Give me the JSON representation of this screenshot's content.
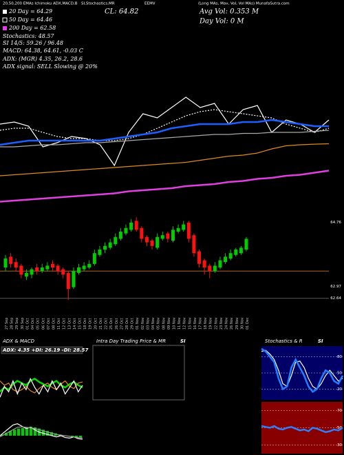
{
  "header": {
    "top": [
      "20,50,200 EMAs Ichimoku ADX,MACD,B",
      "SI,Stochastics,MR",
      "EEMV",
      "(Long MAs, Mav, Vol, Vol MAs) MunafaSutra.com"
    ],
    "lines": [
      "20 Day = 64.29",
      "50 Day = 64.46",
      "200 Day = 62.58",
      "Stochastics: 48.57",
      "SI 14/5: 59.26 / 96.48",
      "MACD: 64.38, 64.61, -0.03 C",
      "ADX: (MGR) 4.35, 26.2, 28.6",
      "ADX signal: SELL Slowing @ 20%"
    ],
    "cl": "CL: 64.82",
    "avg_vol": "Avg Vol: 0.353 M",
    "day_vol": "Day Vol: 0 M"
  },
  "chart_data": [
    {
      "type": "line",
      "ylim": [
        60,
        66
      ],
      "series": [
        {
          "color": "#ffffff",
          "values": [
            64.0,
            64.1,
            63.9,
            62.9,
            63.1,
            63.4,
            63.3,
            63.0,
            62.0,
            63.6,
            64.5,
            64.3,
            64.8,
            65.3,
            64.8,
            65.0,
            64.0,
            64.7,
            64.9,
            63.6,
            64.2,
            64.0,
            63.6,
            64.2
          ]
        },
        {
          "color": "#ffffff",
          "style": "dotted",
          "values": [
            63.7,
            63.8,
            63.8,
            63.6,
            63.4,
            63.3,
            63.3,
            63.2,
            63.2,
            63.3,
            63.5,
            63.8,
            64.1,
            64.4,
            64.6,
            64.7,
            64.6,
            64.5,
            64.4,
            64.3,
            64.0,
            63.8,
            63.6,
            63.8
          ]
        },
        {
          "color": "#aaaaaa",
          "values": [
            62.9,
            62.9,
            62.95,
            63.0,
            63.0,
            63.05,
            63.1,
            63.1,
            63.15,
            63.2,
            63.25,
            63.3,
            63.35,
            63.4,
            63.45,
            63.5,
            63.5,
            63.55,
            63.55,
            63.6,
            63.6,
            63.6,
            63.65,
            63.7
          ]
        },
        {
          "color": "#1f5fff",
          "style": "thick",
          "values": [
            63.0,
            63.1,
            63.2,
            63.2,
            63.2,
            63.2,
            63.2,
            63.2,
            63.3,
            63.4,
            63.5,
            63.6,
            63.8,
            63.9,
            64.0,
            64.0,
            64.0,
            64.1,
            64.1,
            64.2,
            64.1,
            64.0,
            63.9,
            63.9
          ]
        },
        {
          "color": "#e08a1e",
          "values": [
            61.5,
            61.55,
            61.6,
            61.65,
            61.7,
            61.75,
            61.8,
            61.85,
            61.9,
            61.95,
            62.0,
            62.05,
            62.1,
            62.15,
            62.25,
            62.35,
            62.45,
            62.5,
            62.6,
            62.8,
            62.95,
            63.0,
            63.03,
            63.05
          ]
        },
        {
          "color": "#e040e0",
          "style": "thick",
          "values": [
            60.25,
            60.3,
            60.35,
            60.4,
            60.45,
            60.5,
            60.55,
            60.6,
            60.65,
            60.75,
            60.8,
            60.85,
            60.9,
            61.0,
            61.05,
            61.1,
            61.2,
            61.25,
            61.35,
            61.4,
            61.5,
            61.55,
            61.65,
            61.75
          ]
        }
      ]
    },
    {
      "type": "candlestick",
      "ylim": [
        62.5,
        65.0
      ],
      "yticks": [
        64.76,
        62.97,
        62.64
      ],
      "hlines": [
        {
          "value": 63.4,
          "color": "#c87533"
        },
        {
          "value": 62.64,
          "color": "#777777"
        }
      ],
      "categories": [
        "27 Sep",
        "28 Sep",
        "29 Sep",
        "30 Sep",
        "01 Oct",
        "04 Oct",
        "05 Oct",
        "06 Oct",
        "07 Oct",
        "08 Oct",
        "11 Oct",
        "12 Oct",
        "13 Oct",
        "14 Oct",
        "15 Oct",
        "18 Oct",
        "19 Oct",
        "20 Oct",
        "21 Oct",
        "22 Oct",
        "25 Oct",
        "26 Oct",
        "27 Oct",
        "28 Oct",
        "29 Oct",
        "01 Nov",
        "02 Nov",
        "03 Nov",
        "04 Nov",
        "05 Nov",
        "08 Nov",
        "09 Nov",
        "10 Nov",
        "11 Nov",
        "12 Nov",
        "15 Nov",
        "16 Nov",
        "17 Nov",
        "18 Nov",
        "19 Nov",
        "22 Nov",
        "23 Nov",
        "24 Nov",
        "26 Nov",
        "29 Nov",
        "30 Nov",
        "01 Dec"
      ],
      "open": [
        63.5,
        63.8,
        63.65,
        63.55,
        63.25,
        63.3,
        63.5,
        63.4,
        63.45,
        63.6,
        63.55,
        63.45,
        63.35,
        62.95,
        63.35,
        63.45,
        63.5,
        63.6,
        63.85,
        64.0,
        64.05,
        64.15,
        64.3,
        64.45,
        64.55,
        64.8,
        64.6,
        64.35,
        64.25,
        64.05,
        64.3,
        64.45,
        64.25,
        64.5,
        64.55,
        64.75,
        64.4,
        63.95,
        63.7,
        63.55,
        63.4,
        63.5,
        63.65,
        63.75,
        63.85,
        63.9,
        64.0
      ],
      "high": [
        63.85,
        63.9,
        63.75,
        63.6,
        63.45,
        63.5,
        63.6,
        63.6,
        63.65,
        63.7,
        63.6,
        63.5,
        63.4,
        63.5,
        63.6,
        63.65,
        63.7,
        64.0,
        64.1,
        64.2,
        64.3,
        64.45,
        64.6,
        64.7,
        64.85,
        64.9,
        64.65,
        64.4,
        64.3,
        64.45,
        64.5,
        64.5,
        64.65,
        64.7,
        64.8,
        64.8,
        64.45,
        64.0,
        63.75,
        63.6,
        63.65,
        63.8,
        63.9,
        64.0,
        64.05,
        64.1,
        64.35
      ],
      "low": [
        63.4,
        63.5,
        63.4,
        63.2,
        63.15,
        63.2,
        63.3,
        63.35,
        63.4,
        63.4,
        63.3,
        63.2,
        62.6,
        62.9,
        63.3,
        63.4,
        63.45,
        63.55,
        63.8,
        63.9,
        64.0,
        64.1,
        64.25,
        64.4,
        64.5,
        64.5,
        64.2,
        64.1,
        64.0,
        64.0,
        64.25,
        64.2,
        64.2,
        64.45,
        64.5,
        64.2,
        63.8,
        63.5,
        63.3,
        63.2,
        63.35,
        63.45,
        63.6,
        63.7,
        63.8,
        63.85,
        63.95
      ],
      "close": [
        63.75,
        63.6,
        63.5,
        63.3,
        63.35,
        63.45,
        63.4,
        63.5,
        63.55,
        63.5,
        63.4,
        63.3,
        62.9,
        63.4,
        63.5,
        63.55,
        63.6,
        63.9,
        64.0,
        64.1,
        64.2,
        64.35,
        64.5,
        64.6,
        64.75,
        64.55,
        64.3,
        64.2,
        64.1,
        64.35,
        64.4,
        64.3,
        64.55,
        64.6,
        64.7,
        64.3,
        63.9,
        63.6,
        63.5,
        63.4,
        63.55,
        63.7,
        63.8,
        63.9,
        64.0,
        64.05,
        64.3
      ]
    },
    {
      "type": "line",
      "title": "ADX & MACD",
      "subtitle": "ADX: 4.35 +DI: 26.19 -DI: 28.57",
      "ylim": [
        0,
        60
      ],
      "series": [
        {
          "color": "#00dd00",
          "style": "thick",
          "values": [
            20,
            24,
            22,
            27,
            30,
            28,
            26,
            30,
            32,
            29,
            27,
            25,
            28,
            30,
            26,
            24,
            27,
            29,
            26,
            24
          ]
        },
        {
          "color": "#e08a1e",
          "values": [
            30,
            26,
            28,
            22,
            20,
            22,
            25,
            21,
            19,
            23,
            26,
            28,
            24,
            22,
            27,
            30,
            25,
            23,
            28,
            29
          ]
        },
        {
          "color": "#ffffff",
          "values": [
            15,
            25,
            20,
            30,
            18,
            28,
            22,
            32,
            24,
            18,
            26,
            20,
            30,
            22,
            28,
            18,
            24,
            30,
            20,
            26
          ]
        }
      ]
    },
    {
      "type": "macd",
      "ylim": [
        -0.3,
        0.3
      ],
      "color": "#00cc00",
      "values": [
        0.02,
        0.05,
        0.08,
        0.1,
        0.12,
        0.13,
        0.14,
        0.15,
        0.14,
        0.12,
        0.1,
        0.08,
        0.06,
        0.04,
        0.02,
        0.0,
        -0.01,
        -0.02,
        -0.02,
        -0.03
      ],
      "series": [
        {
          "color": "#ffffff",
          "values": [
            0.0,
            0.06,
            0.12,
            0.18,
            0.2,
            0.16,
            0.12,
            0.14,
            0.1,
            0.06,
            0.04,
            0.02,
            0.0,
            -0.02,
            0.0,
            -0.03,
            -0.04,
            -0.02,
            -0.05,
            -0.06
          ]
        },
        {
          "color": "#999999",
          "values": [
            -0.02,
            0.02,
            0.06,
            0.1,
            0.14,
            0.15,
            0.14,
            0.13,
            0.12,
            0.1,
            0.08,
            0.06,
            0.04,
            0.02,
            0.01,
            0.0,
            -0.01,
            -0.02,
            -0.03,
            -0.04
          ]
        }
      ]
    },
    {
      "type": "line",
      "title": "Intra Day Trading Price & MR",
      "subtitle": "SI",
      "frame": true
    },
    {
      "type": "line",
      "title": "Stochastics & R",
      "ylim": [
        0,
        100
      ],
      "yticks": [
        20,
        50,
        80
      ],
      "grid": true,
      "background": "#000066",
      "series": [
        {
          "color": "#ffffff",
          "values": [
            90,
            92,
            85,
            75,
            55,
            30,
            25,
            45,
            70,
            72,
            60,
            40,
            25,
            20,
            30,
            45,
            55,
            45,
            35,
            40
          ]
        },
        {
          "color": "#1f7fff",
          "style": "thick",
          "values": [
            95,
            90,
            80,
            70,
            40,
            20,
            25,
            60,
            75,
            60,
            45,
            25,
            15,
            20,
            40,
            55,
            50,
            35,
            30,
            45
          ]
        }
      ]
    },
    {
      "type": "line",
      "subtitle": "SI",
      "ylim": [
        20,
        80
      ],
      "yticks": [
        30,
        50,
        70
      ],
      "grid": true,
      "background": "#880000",
      "series": [
        {
          "color": "#2f7fff",
          "style": "thick",
          "values": [
            52,
            51,
            50,
            52,
            49,
            48,
            50,
            51,
            49,
            47,
            48,
            46,
            50,
            49,
            47,
            45,
            46,
            48,
            47,
            50
          ]
        }
      ]
    }
  ]
}
